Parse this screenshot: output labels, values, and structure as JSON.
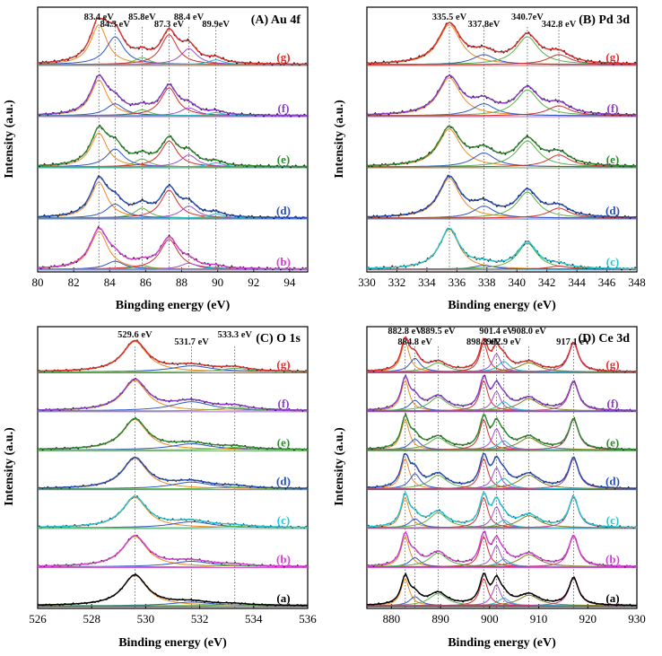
{
  "figure": "XPS spectra",
  "chart_data": [
    {
      "type": "line",
      "panel": "A",
      "title": "(A) Au 4f",
      "xlabel": "Bingding energy (eV)",
      "ylabel": "Intensity (a.u.)",
      "xlim": [
        80,
        95
      ],
      "xticks": [
        80,
        82,
        84,
        86,
        88,
        90,
        92,
        94
      ],
      "peak_positions": [
        83.4,
        84.3,
        85.8,
        87.3,
        88.4,
        89.9
      ],
      "peak_labels": [
        "83.4 eV",
        "84.3 eV",
        "85.8eV",
        "87.3 eV",
        "88.4 eV",
        "89.9eV"
      ],
      "samples": [
        {
          "label": "(g)",
          "color": "#e03030"
        },
        {
          "label": "(f)",
          "color": "#8a3fc8"
        },
        {
          "label": "(e)",
          "color": "#2e8a2e"
        },
        {
          "label": "(d)",
          "color": "#2a4fb8"
        },
        {
          "label": "(b)",
          "color": "#d640d6"
        }
      ],
      "series": [
        {
          "name": "g",
          "peaks": [
            [
              83.4,
              1.0,
              0.55
            ],
            [
              84.3,
              0.7,
              0.6
            ],
            [
              85.8,
              0.18,
              0.5
            ],
            [
              87.3,
              0.75,
              0.55
            ],
            [
              88.4,
              0.4,
              0.55
            ],
            [
              89.9,
              0.12,
              0.5
            ]
          ]
        },
        {
          "name": "f",
          "peaks": [
            [
              83.4,
              0.9,
              0.55
            ],
            [
              84.3,
              0.3,
              0.6
            ],
            [
              85.8,
              0.15,
              0.5
            ],
            [
              87.3,
              0.7,
              0.55
            ],
            [
              88.4,
              0.2,
              0.55
            ],
            [
              89.9,
              0.08,
              0.5
            ]
          ]
        },
        {
          "name": "e",
          "peaks": [
            [
              83.4,
              0.85,
              0.55
            ],
            [
              84.3,
              0.45,
              0.6
            ],
            [
              85.8,
              0.2,
              0.5
            ],
            [
              87.3,
              0.65,
              0.55
            ],
            [
              88.4,
              0.3,
              0.55
            ],
            [
              89.9,
              0.1,
              0.5
            ]
          ]
        },
        {
          "name": "d",
          "peaks": [
            [
              83.4,
              0.9,
              0.55
            ],
            [
              84.3,
              0.35,
              0.6
            ],
            [
              85.8,
              0.25,
              0.5
            ],
            [
              87.3,
              0.7,
              0.55
            ],
            [
              88.4,
              0.3,
              0.55
            ],
            [
              89.9,
              0.1,
              0.5
            ]
          ]
        },
        {
          "name": "b",
          "peaks": [
            [
              83.4,
              0.95,
              0.6
            ],
            [
              84.3,
              0.2,
              0.6
            ],
            [
              85.8,
              0.1,
              0.5
            ],
            [
              87.3,
              0.75,
              0.6
            ],
            [
              88.4,
              0.15,
              0.55
            ],
            [
              89.9,
              0.05,
              0.5
            ]
          ]
        }
      ]
    },
    {
      "type": "line",
      "panel": "B",
      "title": "(B) Pd 3d",
      "xlabel": "Binding energy (eV)",
      "ylabel": "Intensity (a.u.)",
      "xlim": [
        330,
        348
      ],
      "xticks": [
        330,
        332,
        334,
        336,
        338,
        340,
        342,
        344,
        346,
        348
      ],
      "peak_positions": [
        335.5,
        337.8,
        340.7,
        342.8
      ],
      "peak_labels": [
        "335.5 eV",
        "337.8eV",
        "340.7eV",
        "342.8 eV"
      ],
      "samples": [
        {
          "label": "(g)",
          "color": "#e03030"
        },
        {
          "label": "(f)",
          "color": "#8a3fc8"
        },
        {
          "label": "(e)",
          "color": "#2e8a2e"
        },
        {
          "label": "(d)",
          "color": "#2a4fb8"
        },
        {
          "label": "(c)",
          "color": "#22c8d8"
        }
      ],
      "series": [
        {
          "name": "g",
          "peaks": [
            [
              335.5,
              1.0,
              0.9
            ],
            [
              337.8,
              0.25,
              0.9
            ],
            [
              340.7,
              0.7,
              0.9
            ],
            [
              342.8,
              0.25,
              0.9
            ]
          ]
        },
        {
          "name": "f",
          "peaks": [
            [
              335.5,
              0.95,
              0.9
            ],
            [
              337.8,
              0.3,
              0.9
            ],
            [
              340.7,
              0.65,
              0.9
            ],
            [
              342.8,
              0.25,
              0.9
            ]
          ]
        },
        {
          "name": "e",
          "peaks": [
            [
              335.5,
              0.95,
              0.9
            ],
            [
              337.8,
              0.35,
              0.9
            ],
            [
              340.7,
              0.65,
              0.9
            ],
            [
              342.8,
              0.3,
              0.9
            ]
          ]
        },
        {
          "name": "d",
          "peaks": [
            [
              335.5,
              1.0,
              0.85
            ],
            [
              337.8,
              0.3,
              0.85
            ],
            [
              340.7,
              0.65,
              0.85
            ],
            [
              342.8,
              0.25,
              0.85
            ]
          ]
        },
        {
          "name": "c",
          "peaks": [
            [
              335.5,
              1.0,
              0.8
            ],
            [
              337.8,
              0.1,
              0.8
            ],
            [
              340.7,
              0.65,
              0.8
            ],
            [
              342.8,
              0.08,
              0.8
            ]
          ]
        }
      ]
    },
    {
      "type": "line",
      "panel": "C",
      "title": "(C) O 1s",
      "xlabel": "Binding energy (eV)",
      "ylabel": "Intensity (a.u.)",
      "xlim": [
        526,
        536
      ],
      "xticks": [
        526,
        528,
        530,
        532,
        534,
        536
      ],
      "peak_positions": [
        529.6,
        531.7,
        533.3
      ],
      "peak_labels": [
        "529.6 eV",
        "531.7 eV",
        "533.3 eV"
      ],
      "samples": [
        {
          "label": "(g)",
          "color": "#e03030"
        },
        {
          "label": "(f)",
          "color": "#8a3fc8"
        },
        {
          "label": "(e)",
          "color": "#2e8a2e"
        },
        {
          "label": "(d)",
          "color": "#2a4fb8"
        },
        {
          "label": "(c)",
          "color": "#22c8d8"
        },
        {
          "label": "(b)",
          "color": "#d640d6"
        },
        {
          "label": "(a)",
          "color": "#000000"
        }
      ],
      "series": [
        {
          "name": "g",
          "peaks": [
            [
              529.6,
              1.0,
              0.55
            ],
            [
              531.7,
              0.2,
              0.9
            ],
            [
              533.3,
              0.12,
              0.6
            ]
          ]
        },
        {
          "name": "f",
          "peaks": [
            [
              529.6,
              1.0,
              0.55
            ],
            [
              531.7,
              0.3,
              0.9
            ],
            [
              533.3,
              0.12,
              0.6
            ]
          ]
        },
        {
          "name": "e",
          "peaks": [
            [
              529.6,
              1.0,
              0.55
            ],
            [
              531.7,
              0.2,
              0.9
            ],
            [
              533.3,
              0.08,
              0.6
            ]
          ]
        },
        {
          "name": "d",
          "peaks": [
            [
              529.6,
              1.0,
              0.55
            ],
            [
              531.7,
              0.22,
              0.9
            ],
            [
              533.3,
              0.06,
              0.6
            ]
          ]
        },
        {
          "name": "c",
          "peaks": [
            [
              529.6,
              1.0,
              0.55
            ],
            [
              531.7,
              0.2,
              0.9
            ],
            [
              533.3,
              0.05,
              0.6
            ]
          ]
        },
        {
          "name": "b",
          "peaks": [
            [
              529.6,
              1.0,
              0.55
            ],
            [
              531.7,
              0.18,
              0.9
            ],
            [
              533.3,
              0.05,
              0.6
            ]
          ]
        },
        {
          "name": "a",
          "peaks": [
            [
              529.6,
              1.0,
              0.55
            ],
            [
              531.7,
              0.12,
              0.9
            ],
            [
              533.3,
              0.04,
              0.6
            ]
          ]
        }
      ]
    },
    {
      "type": "line",
      "panel": "D",
      "title": "(D) Ce 3d",
      "xlabel": "Binding energy (eV)",
      "ylabel": "Intensity (a.u.)",
      "xlim": [
        875,
        930
      ],
      "xticks": [
        880,
        890,
        900,
        910,
        920,
        930
      ],
      "peak_positions": [
        882.8,
        884.8,
        889.5,
        898.8,
        901.4,
        902.9,
        908.0,
        917.1
      ],
      "peak_labels": [
        "882.8 eV",
        "884.8 eV",
        "889.5 eV",
        "898.8 eV",
        "901.4 eV",
        "902.9 eV",
        "908.0 eV",
        "917.1 eV"
      ],
      "samples": [
        {
          "label": "(g)",
          "color": "#e03030"
        },
        {
          "label": "(f)",
          "color": "#8a3fc8"
        },
        {
          "label": "(e)",
          "color": "#2e8a2e"
        },
        {
          "label": "(d)",
          "color": "#2a4fb8"
        },
        {
          "label": "(c)",
          "color": "#22c8d8"
        },
        {
          "label": "(b)",
          "color": "#d640d6"
        },
        {
          "label": "(a)",
          "color": "#000000"
        }
      ],
      "series": [
        {
          "name": "g",
          "peaks": [
            [
              882.8,
              1.0,
              1.0
            ],
            [
              884.8,
              0.45,
              1.3
            ],
            [
              889.5,
              0.3,
              2.2
            ],
            [
              898.8,
              0.95,
              1.0
            ],
            [
              901.4,
              0.6,
              1.0
            ],
            [
              902.9,
              0.35,
              1.4
            ],
            [
              908.0,
              0.3,
              2.5
            ],
            [
              917.1,
              0.95,
              1.2
            ]
          ]
        },
        {
          "name": "f",
          "peaks": [
            [
              882.8,
              1.0,
              1.0
            ],
            [
              884.8,
              0.35,
              1.3
            ],
            [
              889.5,
              0.45,
              2.2
            ],
            [
              898.8,
              1.0,
              1.0
            ],
            [
              901.4,
              0.65,
              1.0
            ],
            [
              902.9,
              0.3,
              1.4
            ],
            [
              908.0,
              0.4,
              2.5
            ],
            [
              917.1,
              0.95,
              1.2
            ]
          ]
        },
        {
          "name": "e",
          "peaks": [
            [
              882.8,
              1.0,
              1.0
            ],
            [
              884.8,
              0.35,
              1.3
            ],
            [
              889.5,
              0.4,
              2.2
            ],
            [
              898.8,
              1.0,
              1.0
            ],
            [
              901.4,
              0.7,
              1.0
            ],
            [
              902.9,
              0.3,
              1.4
            ],
            [
              908.0,
              0.4,
              2.5
            ],
            [
              917.1,
              1.0,
              1.2
            ]
          ]
        },
        {
          "name": "d",
          "peaks": [
            [
              882.8,
              1.0,
              1.0
            ],
            [
              884.8,
              0.5,
              1.3
            ],
            [
              889.5,
              0.45,
              2.2
            ],
            [
              898.8,
              1.0,
              1.0
            ],
            [
              901.4,
              0.7,
              1.0
            ],
            [
              902.9,
              0.35,
              1.4
            ],
            [
              908.0,
              0.45,
              2.5
            ],
            [
              917.1,
              1.0,
              1.2
            ]
          ]
        },
        {
          "name": "c",
          "peaks": [
            [
              882.8,
              1.0,
              1.0
            ],
            [
              884.8,
              0.3,
              1.3
            ],
            [
              889.5,
              0.5,
              2.2
            ],
            [
              898.8,
              1.0,
              1.0
            ],
            [
              901.4,
              0.7,
              1.0
            ],
            [
              902.9,
              0.25,
              1.4
            ],
            [
              908.0,
              0.4,
              2.5
            ],
            [
              917.1,
              1.0,
              1.2
            ]
          ]
        },
        {
          "name": "b",
          "peaks": [
            [
              882.8,
              1.0,
              1.0
            ],
            [
              884.8,
              0.3,
              1.3
            ],
            [
              889.5,
              0.45,
              2.2
            ],
            [
              898.8,
              1.0,
              1.0
            ],
            [
              901.4,
              0.7,
              1.0
            ],
            [
              902.9,
              0.25,
              1.4
            ],
            [
              908.0,
              0.4,
              2.5
            ],
            [
              917.1,
              1.0,
              1.2
            ]
          ]
        },
        {
          "name": "a",
          "peaks": [
            [
              882.8,
              0.9,
              1.0
            ],
            [
              884.8,
              0.3,
              1.3
            ],
            [
              889.5,
              0.4,
              2.2
            ],
            [
              898.8,
              0.9,
              1.0
            ],
            [
              901.4,
              0.7,
              1.0
            ],
            [
              902.9,
              0.25,
              1.4
            ],
            [
              908.0,
              0.35,
              2.5
            ],
            [
              917.1,
              0.9,
              1.2
            ]
          ]
        }
      ]
    }
  ]
}
